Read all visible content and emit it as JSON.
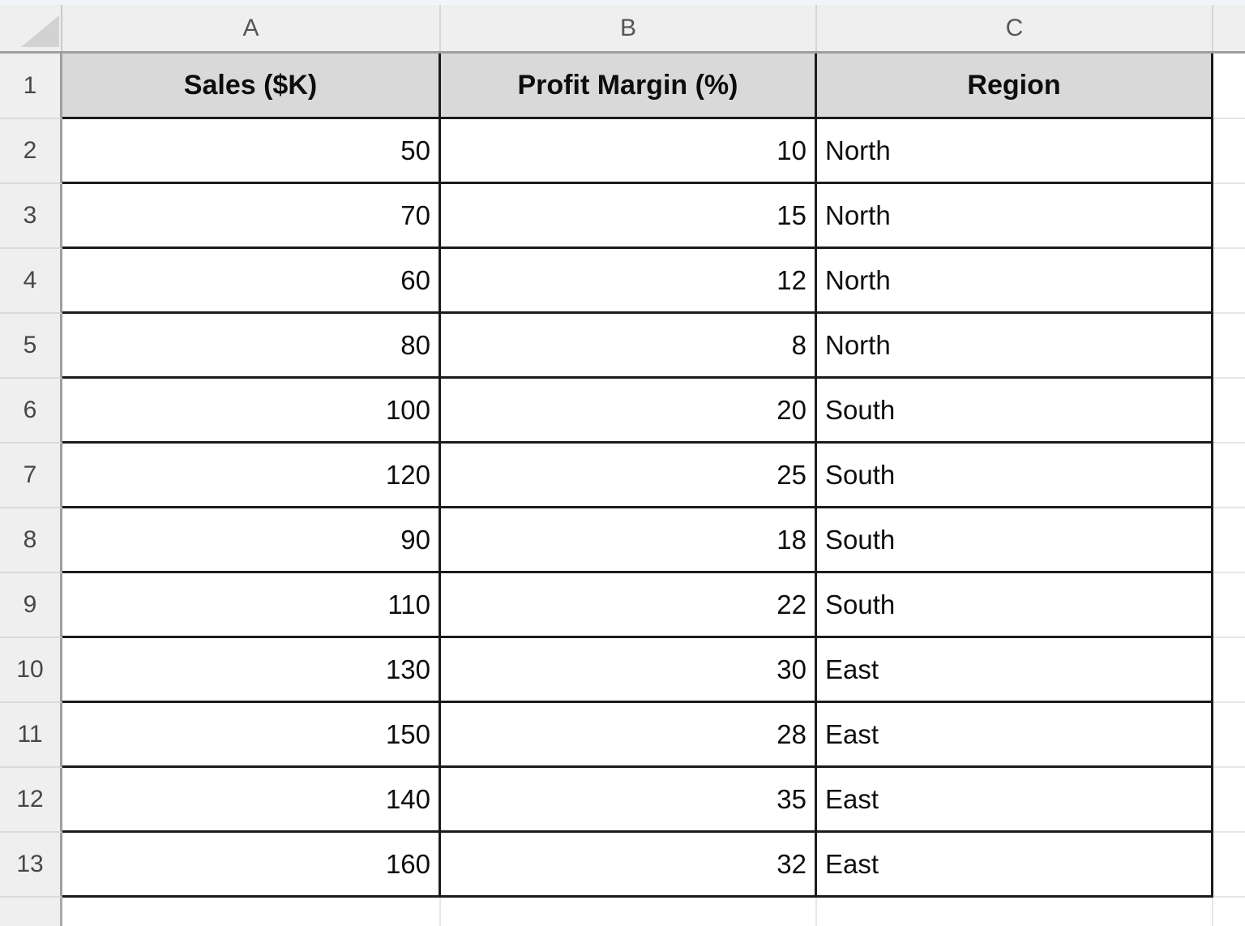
{
  "spreadsheet": {
    "column_letters": [
      "A",
      "B",
      "C"
    ],
    "row_numbers": [
      "1",
      "2",
      "3",
      "4",
      "5",
      "6",
      "7",
      "8",
      "9",
      "10",
      "11",
      "12",
      "13"
    ],
    "header_row": {
      "sales": "Sales ($K)",
      "margin": "Profit Margin (%)",
      "region": "Region"
    },
    "rows": [
      {
        "sales": "50",
        "margin": "10",
        "region": "North"
      },
      {
        "sales": "70",
        "margin": "15",
        "region": "North"
      },
      {
        "sales": "60",
        "margin": "12",
        "region": "North"
      },
      {
        "sales": "80",
        "margin": "8",
        "region": "North"
      },
      {
        "sales": "100",
        "margin": "20",
        "region": "South"
      },
      {
        "sales": "120",
        "margin": "25",
        "region": "South"
      },
      {
        "sales": "90",
        "margin": "18",
        "region": "South"
      },
      {
        "sales": "110",
        "margin": "22",
        "region": "South"
      },
      {
        "sales": "130",
        "margin": "30",
        "region": "East"
      },
      {
        "sales": "150",
        "margin": "28",
        "region": "East"
      },
      {
        "sales": "140",
        "margin": "35",
        "region": "East"
      },
      {
        "sales": "160",
        "margin": "32",
        "region": "East"
      }
    ],
    "colors": {
      "header_fill": "#d9d9d9",
      "gutter_fill": "#efefef",
      "grid_border": "#1b1b1b",
      "gutter_separator": "#9e9e9e",
      "faint_gridline": "#e6e6e6",
      "top_strip": "#f1f5f9",
      "select_all_triangle": "#d2d2d2"
    }
  }
}
